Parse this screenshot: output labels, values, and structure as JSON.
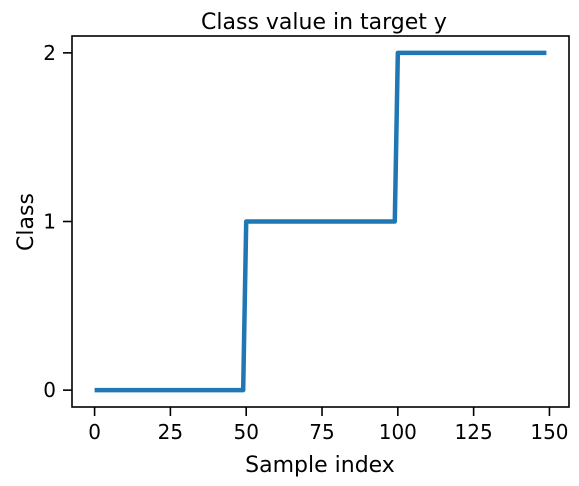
{
  "chart_data": {
    "type": "line",
    "title": "Class value in target y",
    "xlabel": "Sample index",
    "ylabel": "Class",
    "xlim": [
      -7.45,
      156.45
    ],
    "ylim": [
      -0.1,
      2.1
    ],
    "xticks": [
      0,
      25,
      50,
      75,
      100,
      125,
      150
    ],
    "yticks": [
      0,
      1,
      2
    ],
    "grid": false,
    "series": [
      {
        "color": "#1f77b4",
        "x": [
          0,
          49,
          50,
          99,
          100,
          149
        ],
        "y": [
          0,
          0,
          1,
          1,
          2,
          2
        ]
      }
    ]
  }
}
